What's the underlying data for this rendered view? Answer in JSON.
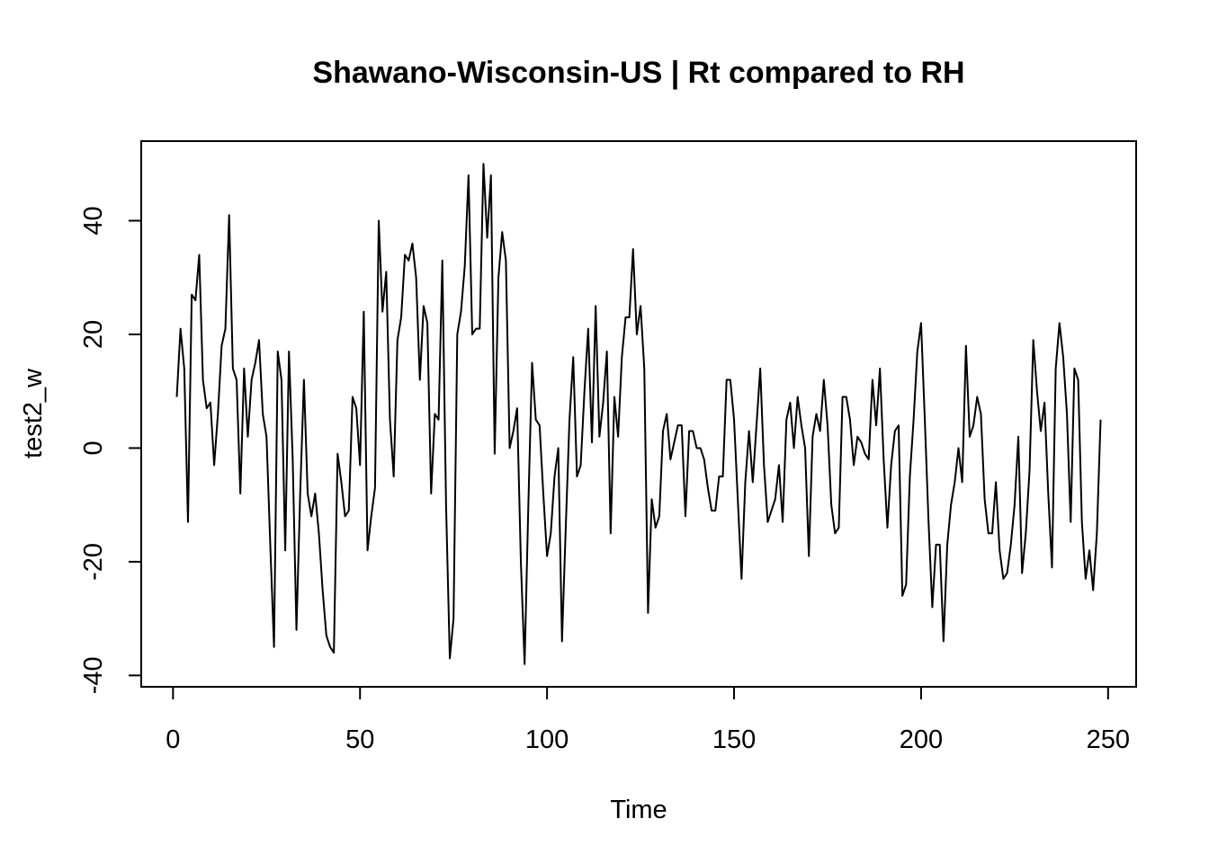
{
  "chart_data": {
    "type": "line",
    "title": "Shawano-Wisconsin-US | Rt compared to RH",
    "xlabel": "Time",
    "ylabel": "test2_w",
    "xlim": [
      -8.5,
      257.5
    ],
    "ylim": [
      -42,
      54
    ],
    "x_ticks": [
      0,
      50,
      100,
      150,
      200,
      250
    ],
    "y_ticks": [
      -40,
      -20,
      0,
      20,
      40
    ],
    "grid": false,
    "legend": "none",
    "line_color": "#000000",
    "series": [
      {
        "values": [
          9,
          21,
          14,
          -13,
          27,
          26,
          34,
          12,
          7,
          8,
          -3,
          6,
          18,
          21,
          41,
          14,
          12,
          -8,
          14,
          2,
          12,
          15,
          19,
          6,
          2,
          -17,
          -35,
          17,
          12,
          -18,
          17,
          -2,
          -32,
          -8,
          12,
          -8,
          -12,
          -8,
          -15,
          -25,
          -33,
          -35,
          -36,
          -1,
          -6,
          -12,
          -11,
          9,
          7,
          -3,
          24,
          -18,
          -12,
          -7,
          40,
          24,
          31,
          5,
          -5,
          19,
          23,
          34,
          33,
          36,
          30,
          12,
          25,
          22,
          -8,
          6,
          5,
          33,
          -10,
          -37,
          -30,
          20,
          24,
          32,
          48,
          20,
          21,
          21,
          50,
          37,
          48,
          -1,
          30,
          38,
          33,
          0,
          3,
          7,
          -20,
          -38,
          -10,
          15,
          5,
          4,
          -8,
          -19,
          -15,
          -5,
          0,
          -34,
          -14,
          5,
          16,
          -5,
          -3,
          10,
          21,
          1,
          25,
          2,
          8,
          17,
          -15,
          9,
          2,
          16,
          23,
          23,
          35,
          20,
          25,
          14,
          -29,
          -9,
          -14,
          -12,
          3,
          6,
          -2,
          1,
          4,
          4,
          -12,
          3,
          3,
          0,
          0,
          -2,
          -7,
          -11,
          -11,
          -5,
          -5,
          12,
          12,
          5,
          -9,
          -23,
          -6,
          3,
          -6,
          4,
          14,
          -3,
          -13,
          -11,
          -9,
          -3,
          -13,
          5,
          8,
          0,
          9,
          4,
          0,
          -19,
          2,
          6,
          3,
          12,
          4,
          -10,
          -15,
          -14,
          9,
          9,
          5,
          -3,
          2,
          1,
          -1,
          -2,
          12,
          4,
          14,
          -2,
          -14,
          -3,
          3,
          4,
          -26,
          -24,
          -5,
          5,
          17,
          22,
          5,
          -13,
          -28,
          -17,
          -17,
          -34,
          -17,
          -10,
          -6,
          0,
          -6,
          18,
          2,
          4,
          9,
          6,
          -9,
          -15,
          -15,
          -6,
          -18,
          -23,
          -22,
          -17,
          -10,
          2,
          -22,
          -15,
          -4,
          19,
          10,
          3,
          8,
          -8,
          -21,
          14,
          22,
          16,
          6,
          -13,
          14,
          12,
          -13,
          -23,
          -18,
          -25,
          -15,
          5
        ]
      }
    ]
  }
}
